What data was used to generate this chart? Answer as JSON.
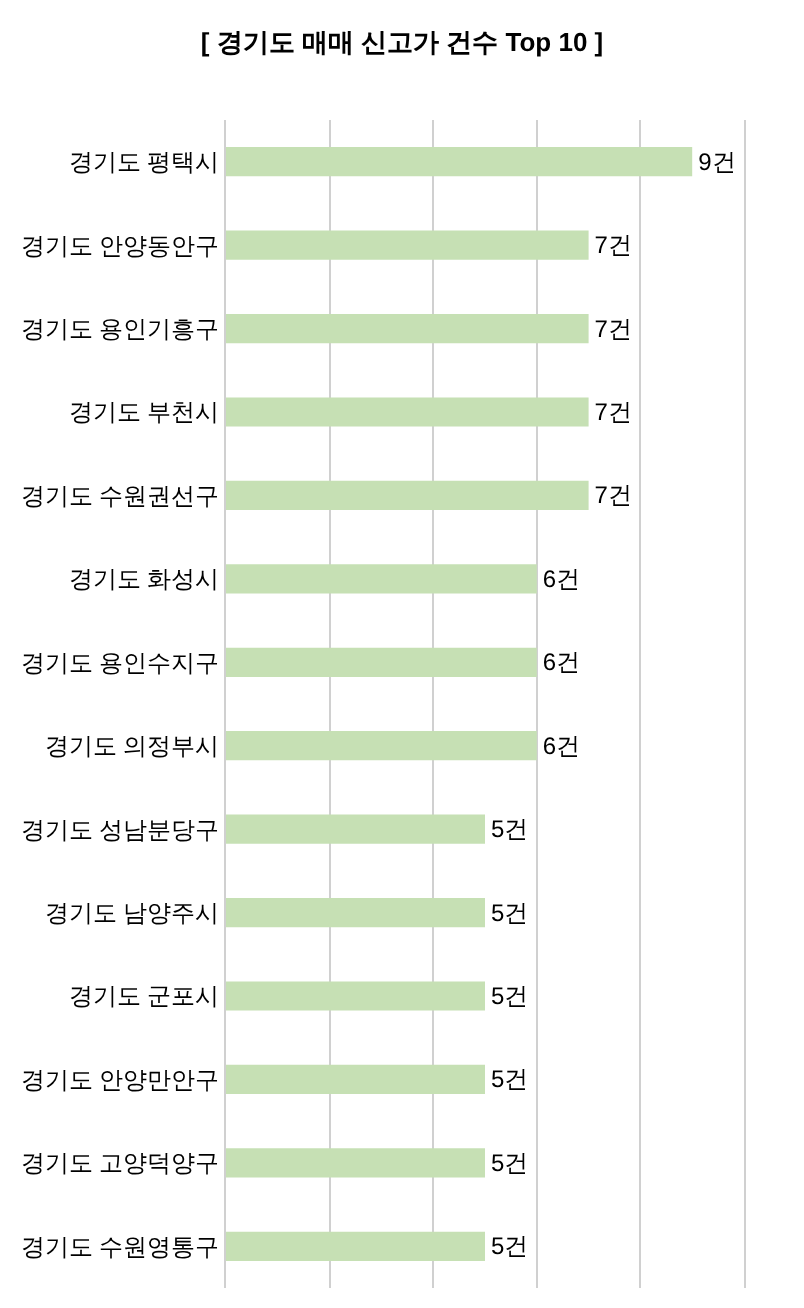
{
  "chart_data": {
    "type": "bar",
    "orientation": "horizontal",
    "title": "[ 경기도 매매 신고가 건수 Top 10 ]",
    "categories": [
      "경기도 평택시",
      "경기도 안양동안구",
      "경기도 용인기흥구",
      "경기도 부천시",
      "경기도 수원권선구",
      "경기도 화성시",
      "경기도 용인수지구",
      "경기도 의정부시",
      "경기도 성남분당구",
      "경기도 남양주시",
      "경기도 군포시",
      "경기도 안양만안구",
      "경기도 고양덕양구",
      "경기도 수원영통구"
    ],
    "values": [
      9,
      7,
      7,
      7,
      7,
      6,
      6,
      6,
      5,
      5,
      5,
      5,
      5,
      5
    ],
    "value_labels": [
      "9건",
      "7건",
      "7건",
      "7건",
      "7건",
      "6건",
      "6건",
      "6건",
      "5건",
      "5건",
      "5건",
      "5건",
      "5건",
      "5건"
    ],
    "color": "#c6e0b4",
    "xlim": [
      0,
      10
    ],
    "xticks": [
      {
        "value": 0,
        "label": null
      },
      {
        "value": 2,
        "label": null
      },
      {
        "value": 4,
        "label": null
      },
      {
        "value": 6,
        "label": null
      },
      {
        "value": 8,
        "label": null
      },
      {
        "value": 10,
        "label": null
      }
    ],
    "grid": "x",
    "tick_labels": "y"
  }
}
